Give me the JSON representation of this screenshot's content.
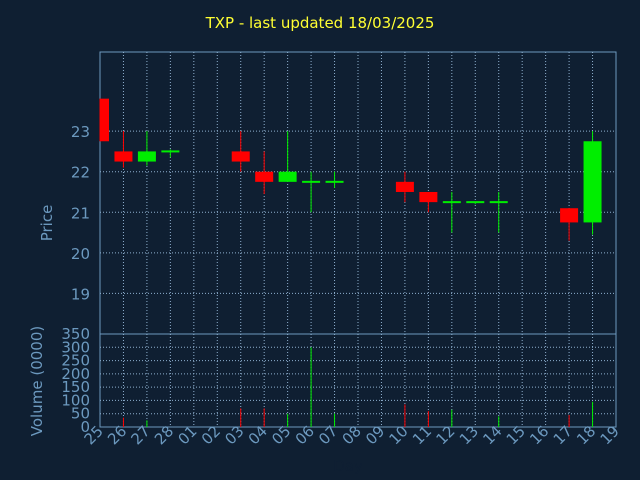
{
  "title": "TXP - last updated 18/03/2025",
  "colors": {
    "background": "#0f1f32",
    "title": "#ffff33",
    "axis": "#6c99bf",
    "grid": "#8fb0cf",
    "up": "#00ee00",
    "down": "#ff0000"
  },
  "chart_data": [
    {
      "type": "candlestick",
      "ylabel": "Price",
      "ylim": [
        18,
        24.95
      ],
      "yticks": [
        19,
        20,
        21,
        22,
        23
      ],
      "grid": true,
      "x_labels": [
        "25",
        "26",
        "27",
        "28",
        "01",
        "02",
        "03",
        "04",
        "05",
        "06",
        "07",
        "08",
        "09",
        "10",
        "11",
        "12",
        "13",
        "14",
        "15",
        "16",
        "17",
        "18",
        "19"
      ],
      "candles": [
        {
          "day": "25",
          "open": 23.8,
          "high": 23.8,
          "low": 22.75,
          "close": 22.75
        },
        {
          "day": "26",
          "open": 22.5,
          "high": 23.0,
          "low": 22.1,
          "close": 22.25
        },
        {
          "day": "27",
          "open": 22.25,
          "high": 23.0,
          "low": 22.15,
          "close": 22.5
        },
        {
          "day": "28",
          "open": 22.5,
          "high": 22.55,
          "low": 22.35,
          "close": 22.5
        },
        {
          "day": "03",
          "open": 22.5,
          "high": 23.0,
          "low": 22.0,
          "close": 22.25
        },
        {
          "day": "04",
          "open": 22.0,
          "high": 22.5,
          "low": 21.45,
          "close": 21.75
        },
        {
          "day": "05",
          "open": 21.75,
          "high": 23.0,
          "low": 21.75,
          "close": 22.0
        },
        {
          "day": "06",
          "open": 21.75,
          "high": 22.0,
          "low": 21.0,
          "close": 21.75
        },
        {
          "day": "07",
          "open": 21.75,
          "high": 22.0,
          "low": 21.6,
          "close": 21.75
        },
        {
          "day": "10",
          "open": 21.75,
          "high": 22.0,
          "low": 21.25,
          "close": 21.5
        },
        {
          "day": "11",
          "open": 21.5,
          "high": 21.5,
          "low": 21.0,
          "close": 21.25
        },
        {
          "day": "12",
          "open": 21.25,
          "high": 21.5,
          "low": 20.5,
          "close": 21.25
        },
        {
          "day": "13",
          "open": 21.25,
          "high": 21.25,
          "low": 21.2,
          "close": 21.25
        },
        {
          "day": "14",
          "open": 21.25,
          "high": 21.5,
          "low": 20.5,
          "close": 21.25
        },
        {
          "day": "17",
          "open": 21.1,
          "high": 21.1,
          "low": 20.3,
          "close": 20.75
        },
        {
          "day": "18",
          "open": 20.75,
          "high": 23.0,
          "low": 20.45,
          "close": 22.75
        }
      ]
    },
    {
      "type": "bar",
      "ylabel": "Volume (0000)",
      "xlabel": "Day",
      "ylim": [
        0,
        350
      ],
      "yticks": [
        0,
        50,
        100,
        150,
        200,
        250,
        300,
        350
      ],
      "grid": true,
      "bars": [
        {
          "day": "26",
          "value": 35,
          "color": "down"
        },
        {
          "day": "27",
          "value": 25,
          "color": "up"
        },
        {
          "day": "03",
          "value": 70,
          "color": "down"
        },
        {
          "day": "04",
          "value": 70,
          "color": "down"
        },
        {
          "day": "05",
          "value": 50,
          "color": "up"
        },
        {
          "day": "06",
          "value": 300,
          "color": "up"
        },
        {
          "day": "07",
          "value": 50,
          "color": "up"
        },
        {
          "day": "10",
          "value": 85,
          "color": "down"
        },
        {
          "day": "11",
          "value": 60,
          "color": "down"
        },
        {
          "day": "12",
          "value": 65,
          "color": "up"
        },
        {
          "day": "14",
          "value": 40,
          "color": "up"
        },
        {
          "day": "17",
          "value": 45,
          "color": "down"
        },
        {
          "day": "18",
          "value": 95,
          "color": "up"
        }
      ]
    }
  ]
}
